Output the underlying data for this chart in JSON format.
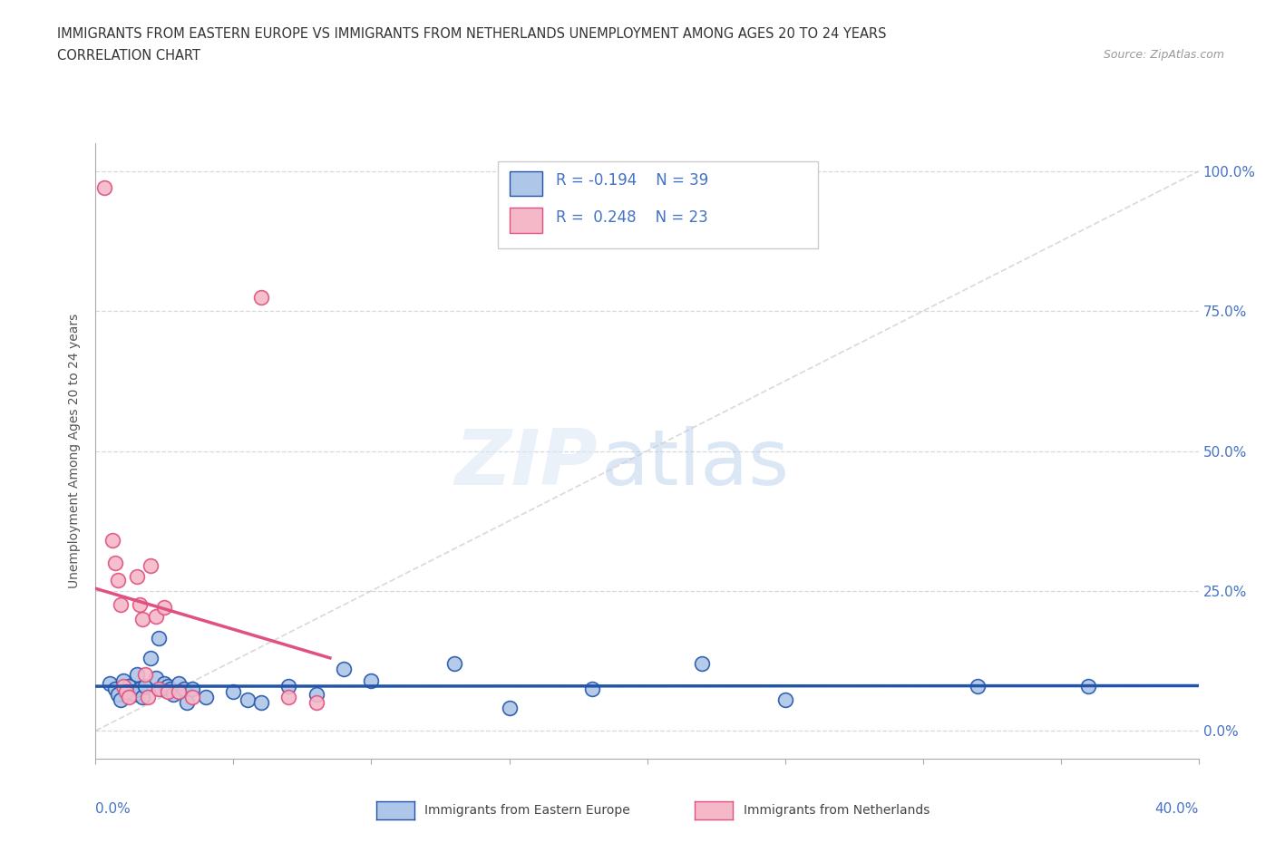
{
  "title_line1": "IMMIGRANTS FROM EASTERN EUROPE VS IMMIGRANTS FROM NETHERLANDS UNEMPLOYMENT AMONG AGES 20 TO 24 YEARS",
  "title_line2": "CORRELATION CHART",
  "source": "Source: ZipAtlas.com",
  "ylabel": "Unemployment Among Ages 20 to 24 years",
  "ytick_labels": [
    "0.0%",
    "25.0%",
    "50.0%",
    "75.0%",
    "100.0%"
  ],
  "ytick_values": [
    0.0,
    0.25,
    0.5,
    0.75,
    1.0
  ],
  "xlim": [
    0.0,
    0.4
  ],
  "ylim": [
    -0.05,
    1.05
  ],
  "legend_label1": "Immigrants from Eastern Europe",
  "legend_label2": "Immigrants from Netherlands",
  "legend_color1": "#aec6e8",
  "legend_color2": "#f4b8c8",
  "R1": -0.194,
  "N1": 39,
  "R2": 0.248,
  "N2": 23,
  "title_color": "#333333",
  "axis_label_color": "#4472c4",
  "blue_scatter": [
    [
      0.005,
      0.085
    ],
    [
      0.007,
      0.075
    ],
    [
      0.008,
      0.065
    ],
    [
      0.009,
      0.055
    ],
    [
      0.01,
      0.09
    ],
    [
      0.012,
      0.08
    ],
    [
      0.013,
      0.07
    ],
    [
      0.014,
      0.065
    ],
    [
      0.015,
      0.1
    ],
    [
      0.016,
      0.075
    ],
    [
      0.017,
      0.06
    ],
    [
      0.018,
      0.08
    ],
    [
      0.02,
      0.13
    ],
    [
      0.022,
      0.095
    ],
    [
      0.023,
      0.165
    ],
    [
      0.024,
      0.075
    ],
    [
      0.025,
      0.085
    ],
    [
      0.026,
      0.08
    ],
    [
      0.027,
      0.075
    ],
    [
      0.028,
      0.065
    ],
    [
      0.03,
      0.085
    ],
    [
      0.032,
      0.075
    ],
    [
      0.033,
      0.05
    ],
    [
      0.035,
      0.075
    ],
    [
      0.04,
      0.06
    ],
    [
      0.05,
      0.07
    ],
    [
      0.055,
      0.055
    ],
    [
      0.06,
      0.05
    ],
    [
      0.07,
      0.08
    ],
    [
      0.08,
      0.065
    ],
    [
      0.09,
      0.11
    ],
    [
      0.1,
      0.09
    ],
    [
      0.13,
      0.12
    ],
    [
      0.15,
      0.04
    ],
    [
      0.18,
      0.075
    ],
    [
      0.22,
      0.12
    ],
    [
      0.25,
      0.055
    ],
    [
      0.32,
      0.08
    ],
    [
      0.36,
      0.08
    ]
  ],
  "pink_scatter": [
    [
      0.003,
      0.97
    ],
    [
      0.006,
      0.34
    ],
    [
      0.007,
      0.3
    ],
    [
      0.008,
      0.27
    ],
    [
      0.009,
      0.225
    ],
    [
      0.01,
      0.08
    ],
    [
      0.011,
      0.07
    ],
    [
      0.012,
      0.06
    ],
    [
      0.015,
      0.275
    ],
    [
      0.016,
      0.225
    ],
    [
      0.017,
      0.2
    ],
    [
      0.018,
      0.1
    ],
    [
      0.019,
      0.06
    ],
    [
      0.02,
      0.295
    ],
    [
      0.022,
      0.205
    ],
    [
      0.023,
      0.075
    ],
    [
      0.025,
      0.22
    ],
    [
      0.026,
      0.07
    ],
    [
      0.03,
      0.07
    ],
    [
      0.035,
      0.06
    ],
    [
      0.06,
      0.775
    ],
    [
      0.07,
      0.06
    ],
    [
      0.08,
      0.05
    ]
  ],
  "blue_line_color": "#2255aa",
  "pink_line_color": "#e05080",
  "dashed_line_color": "#cccccc",
  "grid_color": "#c8d0d8"
}
